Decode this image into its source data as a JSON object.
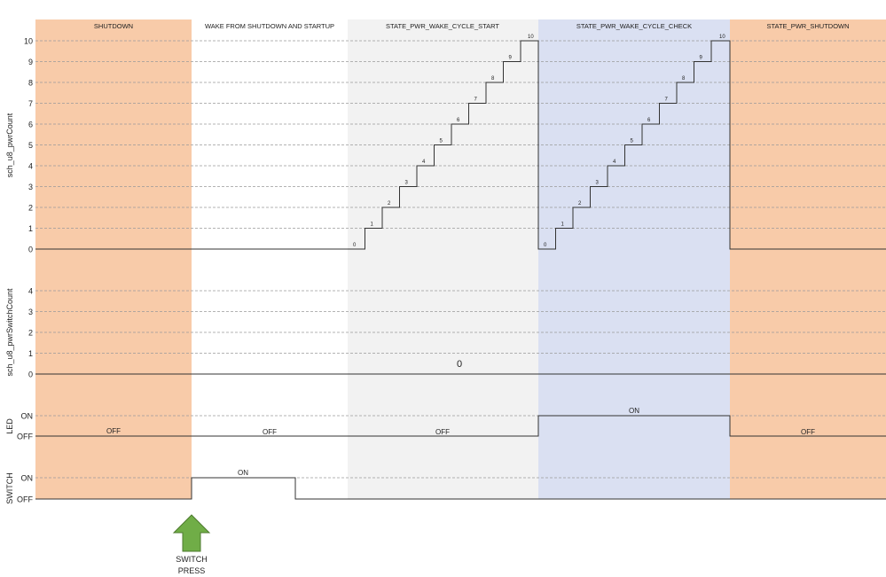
{
  "phases": [
    {
      "label": "SHUTDOWN",
      "color": "#f8cba9"
    },
    {
      "label": "WAKE FROM SHUTDOWN AND STARTUP",
      "color": "#ffffff"
    },
    {
      "label": "STATE_PWR_WAKE_CYCLE_START",
      "color": "#f2f2f2"
    },
    {
      "label": "STATE_PWR_WAKE_CYCLE_CHECK",
      "color": "#dae0f2"
    },
    {
      "label": "STATE_PWR_SHUTDOWN",
      "color": "#f8cba9"
    }
  ],
  "lanes": {
    "pwr_count": {
      "ylabel": "sch_u8_pwrCount",
      "ticks": [
        "0",
        "1",
        "2",
        "3",
        "4",
        "5",
        "6",
        "7",
        "8",
        "9",
        "10"
      ],
      "cycle_start_values": [
        "0",
        "1",
        "2",
        "3",
        "4",
        "5",
        "6",
        "7",
        "8",
        "9",
        "10"
      ],
      "cycle_check_values": [
        "0",
        "1",
        "2",
        "3",
        "4",
        "5",
        "6",
        "7",
        "8",
        "9",
        "10"
      ]
    },
    "pwr_switch_count": {
      "ylabel": "sch_u8_pwrSwitchCount",
      "ticks": [
        "0",
        "1",
        "2",
        "3",
        "4"
      ],
      "value_label": "0"
    },
    "led": {
      "ylabel": "LED",
      "ticks": [
        "OFF",
        "ON"
      ],
      "state_labels": [
        "OFF",
        "OFF",
        "OFF",
        "ON",
        "OFF"
      ]
    },
    "switch": {
      "ylabel": "SWITCH",
      "ticks": [
        "OFF",
        "ON"
      ],
      "on_label": "ON"
    }
  },
  "event": {
    "line1": "SWITCH",
    "line2": "PRESS",
    "arrow_color": "#70ad47"
  }
}
